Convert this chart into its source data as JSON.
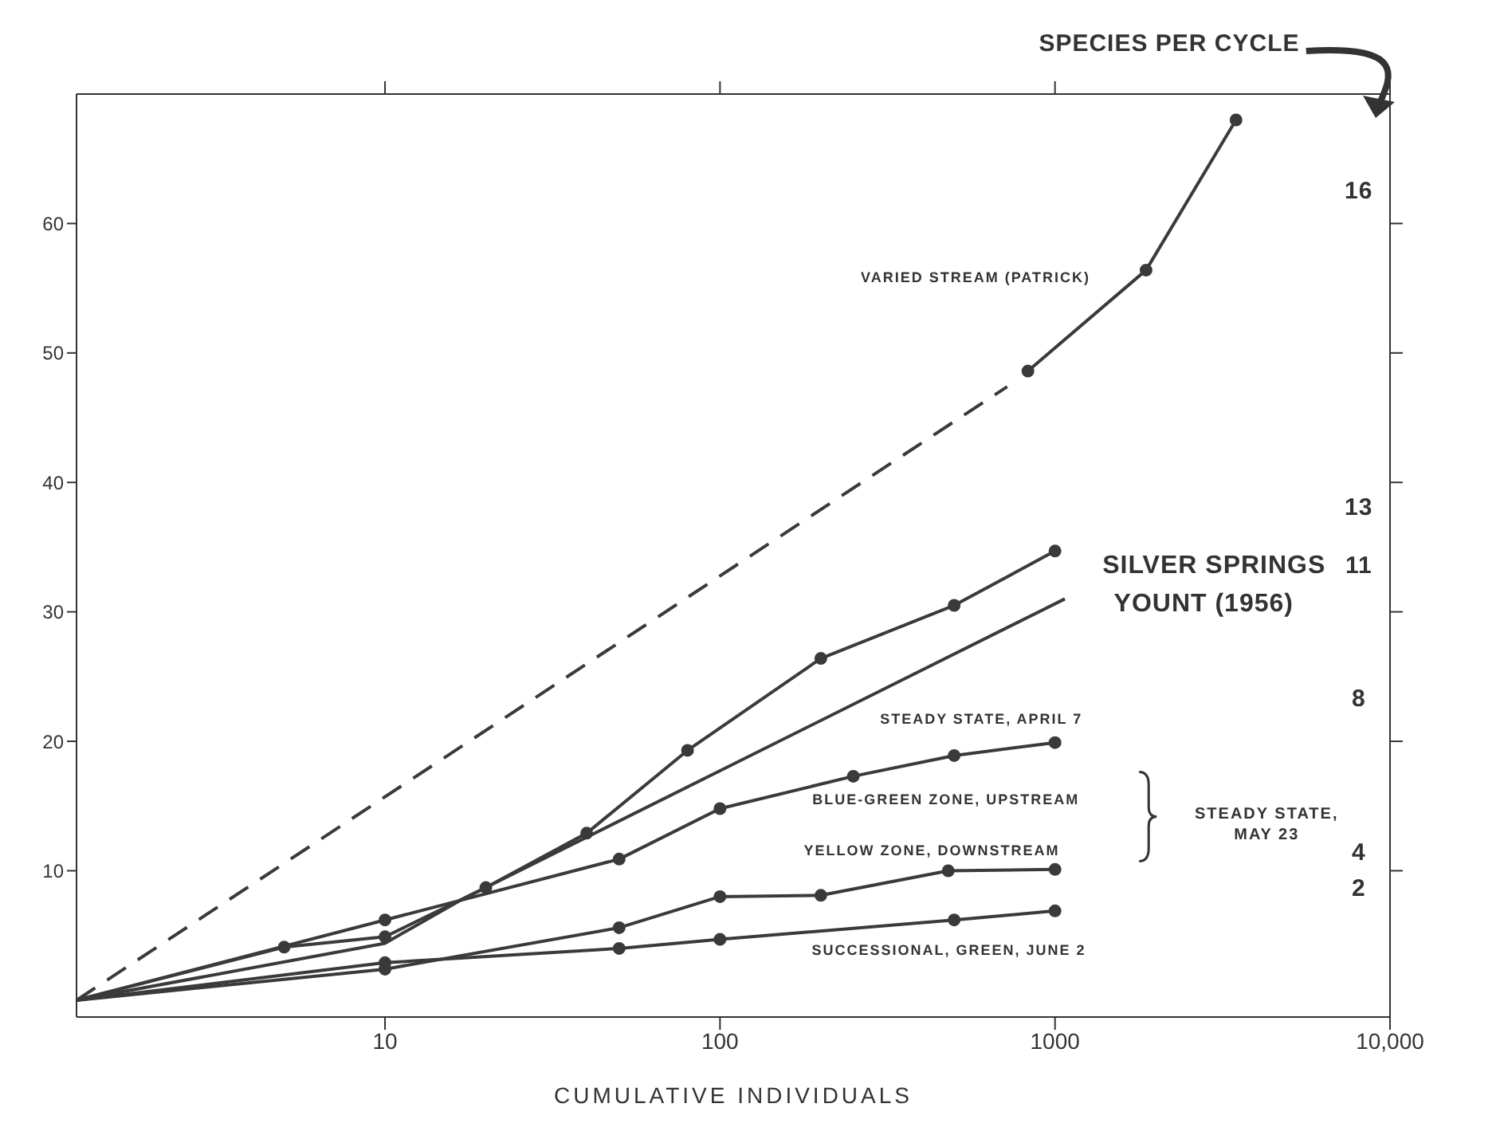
{
  "chart_data": {
    "type": "line",
    "xlabel": "CUMULATIVE INDIVIDUALS",
    "log": "x",
    "marker": "circle",
    "xlim": [
      1.2,
      10000
    ],
    "xticks": [
      10,
      100,
      1000,
      {
        "value": 10000,
        "label": "10,000"
      }
    ],
    "ylim": [
      -1.3,
      70
    ],
    "yticks": [
      10,
      20,
      30,
      40,
      50,
      60
    ],
    "series": [
      {
        "color": "#3a3a3a",
        "line_style": "dashed",
        "marker": "none",
        "x": [
          1.2,
          720
        ],
        "values": [
          0,
          47.4
        ]
      },
      {
        "color": "#3a3a3a",
        "x": [
          830,
          1870,
          3470
        ],
        "values": [
          48.6,
          56.4,
          68
        ]
      },
      {
        "color": "#3a3a3a",
        "x": [
          1.2,
          5,
          10,
          20,
          40,
          80,
          200,
          500,
          1000
        ],
        "values": [
          0,
          4.1,
          4.9,
          8.7,
          12.9,
          19.3,
          26.4,
          30.5,
          34.7
        ]
      },
      {
        "color": "#3a3a3a",
        "marker": "none",
        "x": [
          1.2,
          10,
          17,
          1070
        ],
        "values": [
          0,
          4.4,
          7.8,
          31
        ]
      },
      {
        "color": "#3a3a3a",
        "x": [
          1.2,
          10,
          50,
          100,
          250,
          500,
          1000
        ],
        "values": [
          0,
          6.2,
          10.9,
          14.8,
          17.3,
          18.9,
          19.9
        ]
      },
      {
        "color": "#3a3a3a",
        "x": [
          1.2,
          10,
          50,
          100,
          200,
          480,
          1000
        ],
        "values": [
          0,
          2.4,
          5.6,
          8.0,
          8.1,
          10.0,
          10.1
        ]
      },
      {
        "color": "#3a3a3a",
        "x": [
          1.2,
          10,
          50,
          100,
          500,
          1000
        ],
        "values": [
          0,
          2.9,
          4.0,
          4.7,
          6.2,
          6.9
        ]
      }
    ],
    "annotations": [
      "SPECIES PER CYCLE",
      "16",
      "13",
      "11",
      "8",
      "4",
      "2",
      {
        "text": "VARIED STREAM (PATRICK)",
        "x": 1380,
        "y": 53.9
      },
      "SILVER SPRINGS",
      {
        "text": "YOUNT (1956)",
        "x": 1070,
        "y": 31
      },
      "STEADY STATE, APRIL 7",
      {
        "text": "BLUE-GREEN ZONE, UPSTREAM",
        "x": 170,
        "y": 16
      },
      {
        "text": "YELLOW ZONE, DOWNSTREAM",
        "x": 155,
        "y": 8.1
      },
      "STEADY STATE, MAY 23",
      {
        "text": "SUCCESSIONAL, GREEN, JUNE 2",
        "x": 500,
        "y": 6.2
      }
    ]
  }
}
